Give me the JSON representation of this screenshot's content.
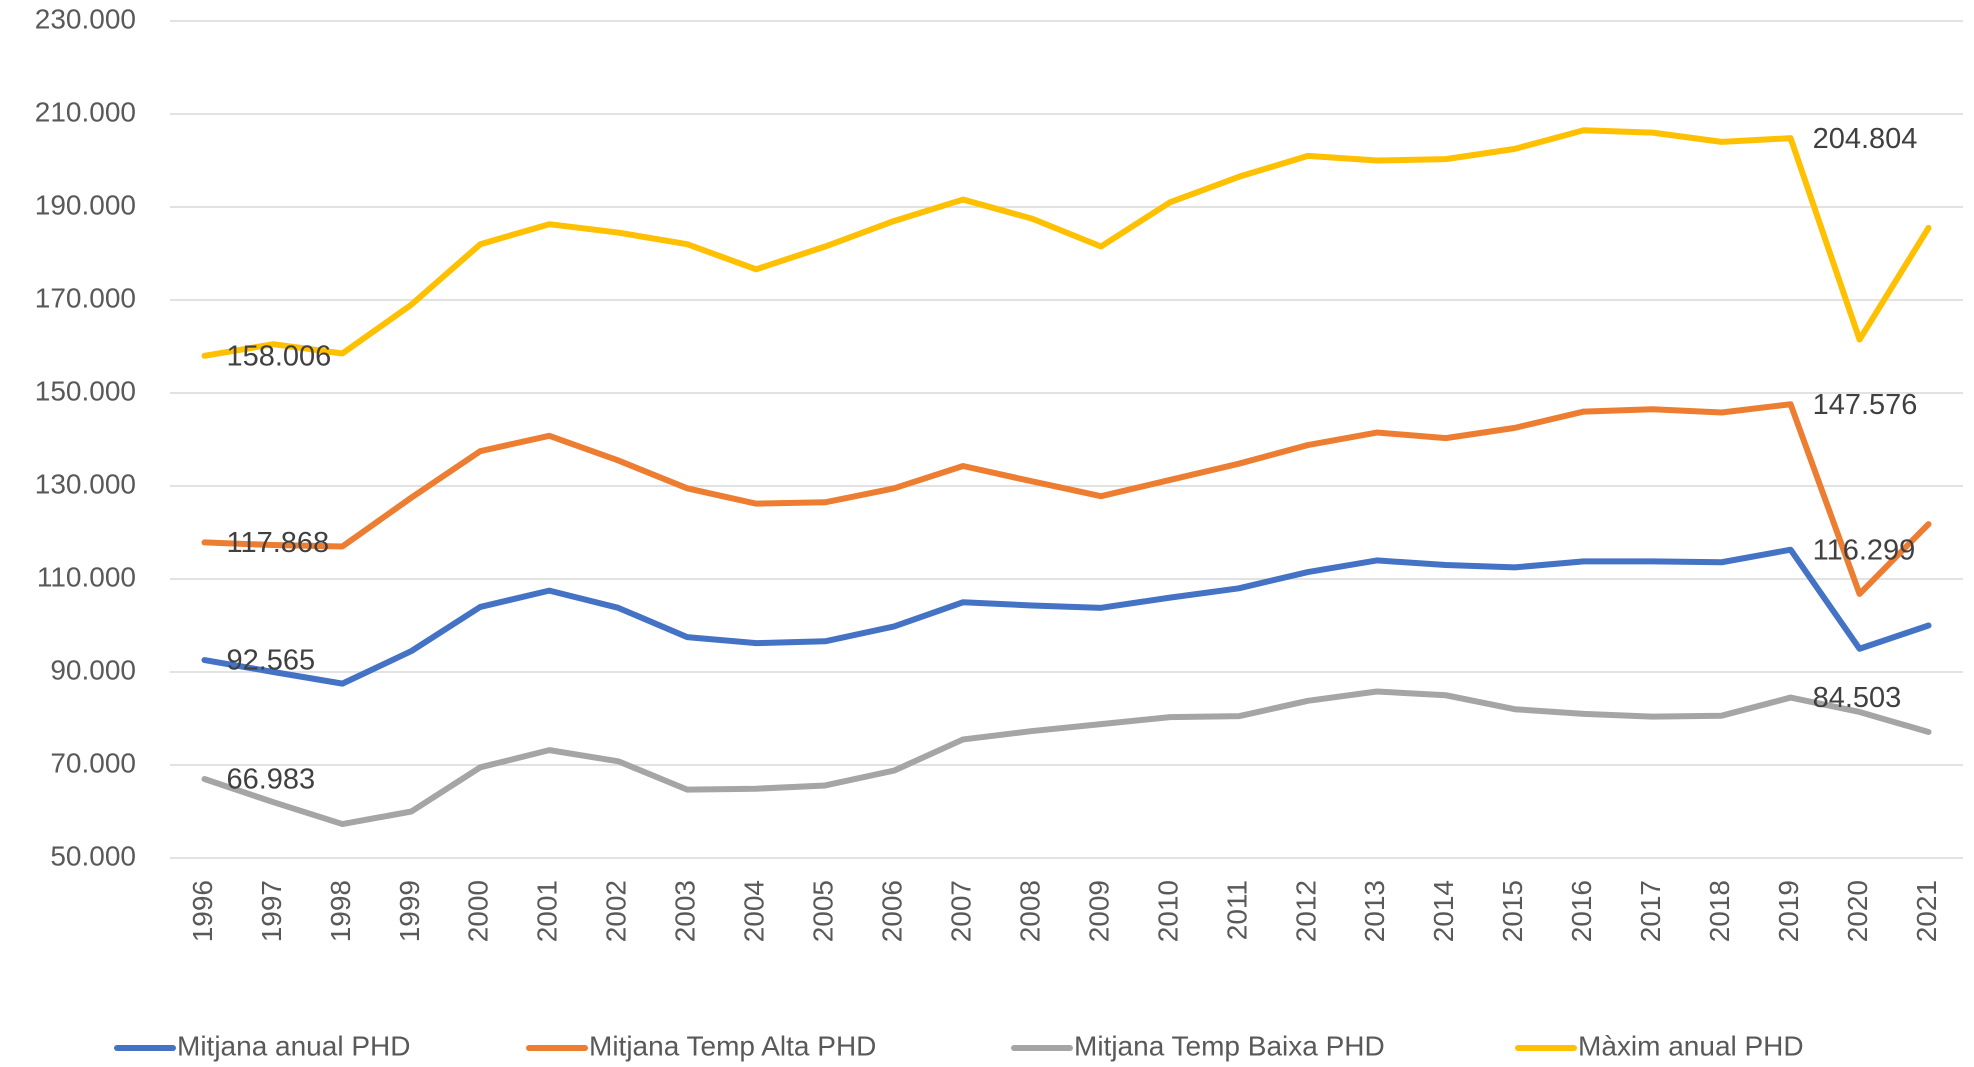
{
  "chart_data": {
    "type": "line",
    "categories": [
      "1996",
      "1997",
      "1998",
      "1999",
      "2000",
      "2001",
      "2002",
      "2003",
      "2004",
      "2005",
      "2006",
      "2007",
      "2008",
      "2009",
      "2010",
      "2011",
      "2012",
      "2013",
      "2014",
      "2015",
      "2016",
      "2017",
      "2018",
      "2019",
      "2020",
      "2021"
    ],
    "series": [
      {
        "name": "Mitjana anual PHD",
        "color": "#4472c4",
        "values": [
          92565,
          90000,
          87500,
          94500,
          104000,
          107500,
          103800,
          97500,
          96200,
          96600,
          99800,
          105000,
          104300,
          103800,
          106000,
          108000,
          111500,
          114000,
          113000,
          112500,
          113800,
          113800,
          113600,
          116299,
          95000,
          100000
        ],
        "value_labels": [
          "92.565",
          null,
          null,
          null,
          null,
          null,
          null,
          null,
          null,
          null,
          null,
          null,
          null,
          null,
          null,
          null,
          null,
          null,
          null,
          null,
          null,
          null,
          null,
          "116.299",
          null,
          null
        ]
      },
      {
        "name": "Mitjana Temp Alta PHD",
        "color": "#ed7d31",
        "values": [
          117868,
          117300,
          117000,
          127500,
          137500,
          140800,
          135500,
          129500,
          126200,
          126500,
          129500,
          134300,
          131000,
          127800,
          131300,
          134800,
          138800,
          141500,
          140300,
          142500,
          146000,
          146500,
          145800,
          147576,
          106800,
          121800
        ],
        "value_labels": [
          "117.868",
          null,
          null,
          null,
          null,
          null,
          null,
          null,
          null,
          null,
          null,
          null,
          null,
          null,
          null,
          null,
          null,
          null,
          null,
          null,
          null,
          null,
          null,
          "147.576",
          null,
          null
        ]
      },
      {
        "name": "Mitjana Temp Baixa PHD",
        "color": "#a5a5a5",
        "values": [
          66983,
          62000,
          57300,
          60000,
          69500,
          73200,
          70800,
          64700,
          64900,
          65600,
          68800,
          75500,
          77300,
          78800,
          80300,
          80500,
          83800,
          85800,
          85000,
          82000,
          81000,
          80400,
          80600,
          84503,
          81400,
          77100
        ],
        "value_labels": [
          "66.983",
          null,
          null,
          null,
          null,
          null,
          null,
          null,
          null,
          null,
          null,
          null,
          null,
          null,
          null,
          null,
          null,
          null,
          null,
          null,
          null,
          null,
          null,
          "84.503",
          null,
          null
        ]
      },
      {
        "name": "Màxim anual PHD",
        "color": "#ffc000",
        "values": [
          158006,
          160500,
          158500,
          169000,
          182000,
          186300,
          184500,
          182000,
          176600,
          181500,
          187000,
          191600,
          187500,
          181500,
          191000,
          196500,
          201000,
          200000,
          200300,
          202500,
          206500,
          206000,
          204000,
          204804,
          161500,
          185500
        ],
        "value_labels": [
          "158.006",
          null,
          null,
          null,
          null,
          null,
          null,
          null,
          null,
          null,
          null,
          null,
          null,
          null,
          null,
          null,
          null,
          null,
          null,
          null,
          null,
          null,
          null,
          "204.804",
          null,
          null
        ]
      }
    ],
    "ylim": [
      50000,
      230000
    ],
    "yticks": [
      {
        "value": 50000,
        "label": "50.000"
      },
      {
        "value": 70000,
        "label": "70.000"
      },
      {
        "value": 90000,
        "label": "90.000"
      },
      {
        "value": 110000,
        "label": "110.000"
      },
      {
        "value": 130000,
        "label": "130.000"
      },
      {
        "value": 150000,
        "label": "150.000"
      },
      {
        "value": 170000,
        "label": "170.000"
      },
      {
        "value": 190000,
        "label": "190.000"
      },
      {
        "value": 210000,
        "label": "210.000"
      },
      {
        "value": 230000,
        "label": "230.000"
      }
    ],
    "grid": true,
    "legend": "bottom"
  }
}
